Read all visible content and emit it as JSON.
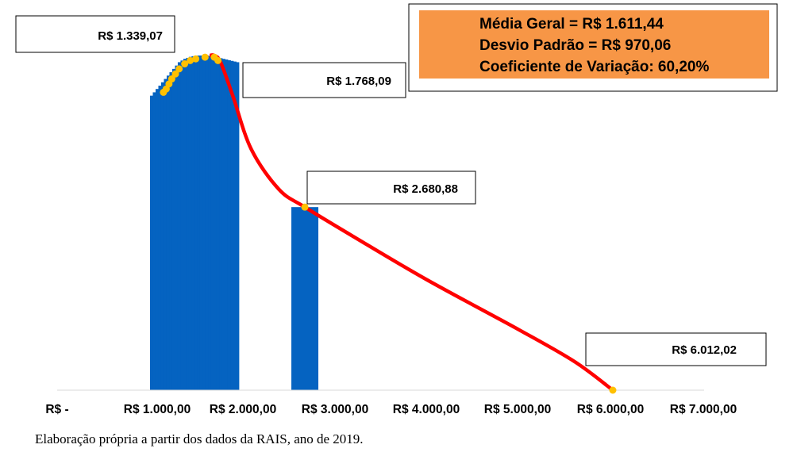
{
  "chart_data": {
    "type": "bar",
    "xlim": [
      0,
      7000
    ],
    "x_ticks": [
      {
        "value": 0,
        "label": "R$ -"
      },
      {
        "value": 1000,
        "label": "R$ 1.000,00"
      },
      {
        "value": 2000,
        "label": "R$ 2.000,00"
      },
      {
        "value": 3000,
        "label": "R$ 3.000,00"
      },
      {
        "value": 4000,
        "label": "R$ 4.000,00"
      },
      {
        "value": 5000,
        "label": "R$ 5.000,00"
      },
      {
        "value": 6000,
        "label": "R$ 6.000,00"
      },
      {
        "value": 7000,
        "label": "R$ 7.000,00"
      }
    ],
    "ylim": [
      0,
      1
    ],
    "bars": [
      {
        "x": 1020,
        "value": 0.88
      },
      {
        "x": 1050,
        "value": 0.89
      },
      {
        "x": 1080,
        "value": 0.9
      },
      {
        "x": 1110,
        "value": 0.91
      },
      {
        "x": 1140,
        "value": 0.92
      },
      {
        "x": 1170,
        "value": 0.93
      },
      {
        "x": 1200,
        "value": 0.94
      },
      {
        "x": 1230,
        "value": 0.95
      },
      {
        "x": 1260,
        "value": 0.96
      },
      {
        "x": 1290,
        "value": 0.97
      },
      {
        "x": 1320,
        "value": 0.98
      },
      {
        "x": 1350,
        "value": 0.985
      },
      {
        "x": 1380,
        "value": 0.99
      },
      {
        "x": 1410,
        "value": 0.993
      },
      {
        "x": 1440,
        "value": 0.996
      },
      {
        "x": 1470,
        "value": 0.998
      },
      {
        "x": 1500,
        "value": 0.999
      },
      {
        "x": 1530,
        "value": 1.0
      },
      {
        "x": 1560,
        "value": 1.0
      },
      {
        "x": 1590,
        "value": 1.0
      },
      {
        "x": 1620,
        "value": 1.0
      },
      {
        "x": 1650,
        "value": 0.999
      },
      {
        "x": 1680,
        "value": 0.998
      },
      {
        "x": 1710,
        "value": 0.996
      },
      {
        "x": 1740,
        "value": 0.994
      },
      {
        "x": 1770,
        "value": 0.992
      },
      {
        "x": 1800,
        "value": 0.99
      },
      {
        "x": 1830,
        "value": 0.988
      },
      {
        "x": 1860,
        "value": 0.986
      },
      {
        "x": 1890,
        "value": 0.984
      },
      {
        "x": 1920,
        "value": 0.982
      },
      {
        "x": 1950,
        "value": 0.98
      },
      {
        "x": 2680,
        "value": 0.547
      }
    ],
    "bar_width": 30,
    "bar_color": "#0563c1",
    "curve": {
      "color": "#ff0000",
      "points": [
        {
          "x": 1650,
          "y": 1.0
        },
        {
          "x": 1700,
          "y": 1.0
        },
        {
          "x": 1768,
          "y": 0.98
        },
        {
          "x": 1900,
          "y": 0.88
        },
        {
          "x": 2100,
          "y": 0.72
        },
        {
          "x": 2400,
          "y": 0.6
        },
        {
          "x": 2680,
          "y": 0.547
        },
        {
          "x": 3200,
          "y": 0.46
        },
        {
          "x": 4000,
          "y": 0.33
        },
        {
          "x": 5000,
          "y": 0.18
        },
        {
          "x": 5600,
          "y": 0.085
        },
        {
          "x": 6012,
          "y": 0.0
        }
      ]
    },
    "markers": {
      "color": "#ffc000",
      "points": [
        {
          "x": 1150,
          "y": 0.89
        },
        {
          "x": 1180,
          "y": 0.9
        },
        {
          "x": 1210,
          "y": 0.915
        },
        {
          "x": 1240,
          "y": 0.93
        },
        {
          "x": 1280,
          "y": 0.945
        },
        {
          "x": 1320,
          "y": 0.96
        },
        {
          "x": 1380,
          "y": 0.975
        },
        {
          "x": 1440,
          "y": 0.985
        },
        {
          "x": 1500,
          "y": 0.99
        },
        {
          "x": 1600,
          "y": 0.995
        },
        {
          "x": 1700,
          "y": 0.995
        },
        {
          "x": 1740,
          "y": 0.985
        },
        {
          "x": 2680,
          "y": 0.547
        },
        {
          "x": 6012,
          "y": 0.0
        }
      ]
    },
    "callouts": [
      {
        "text": "R$ 1.339,07",
        "anchor": "top-left"
      },
      {
        "text": "R$ 1.768,09",
        "anchor": "upper-middle"
      },
      {
        "text": "R$ 2.680,88",
        "anchor": "middle"
      },
      {
        "text": "R$ 6.012,02",
        "anchor": "lower-right"
      }
    ],
    "stats_box": {
      "lines": [
        "Média Geral = R$ 1.611,44",
        "Desvio Padrão = R$ 970,06",
        "Coeficiente de Variação: 60,20%"
      ],
      "fill": "#f79646",
      "placement": "top-right"
    }
  },
  "caption": "Elaboração própria a partir dos dados da RAIS, ano de 2019."
}
